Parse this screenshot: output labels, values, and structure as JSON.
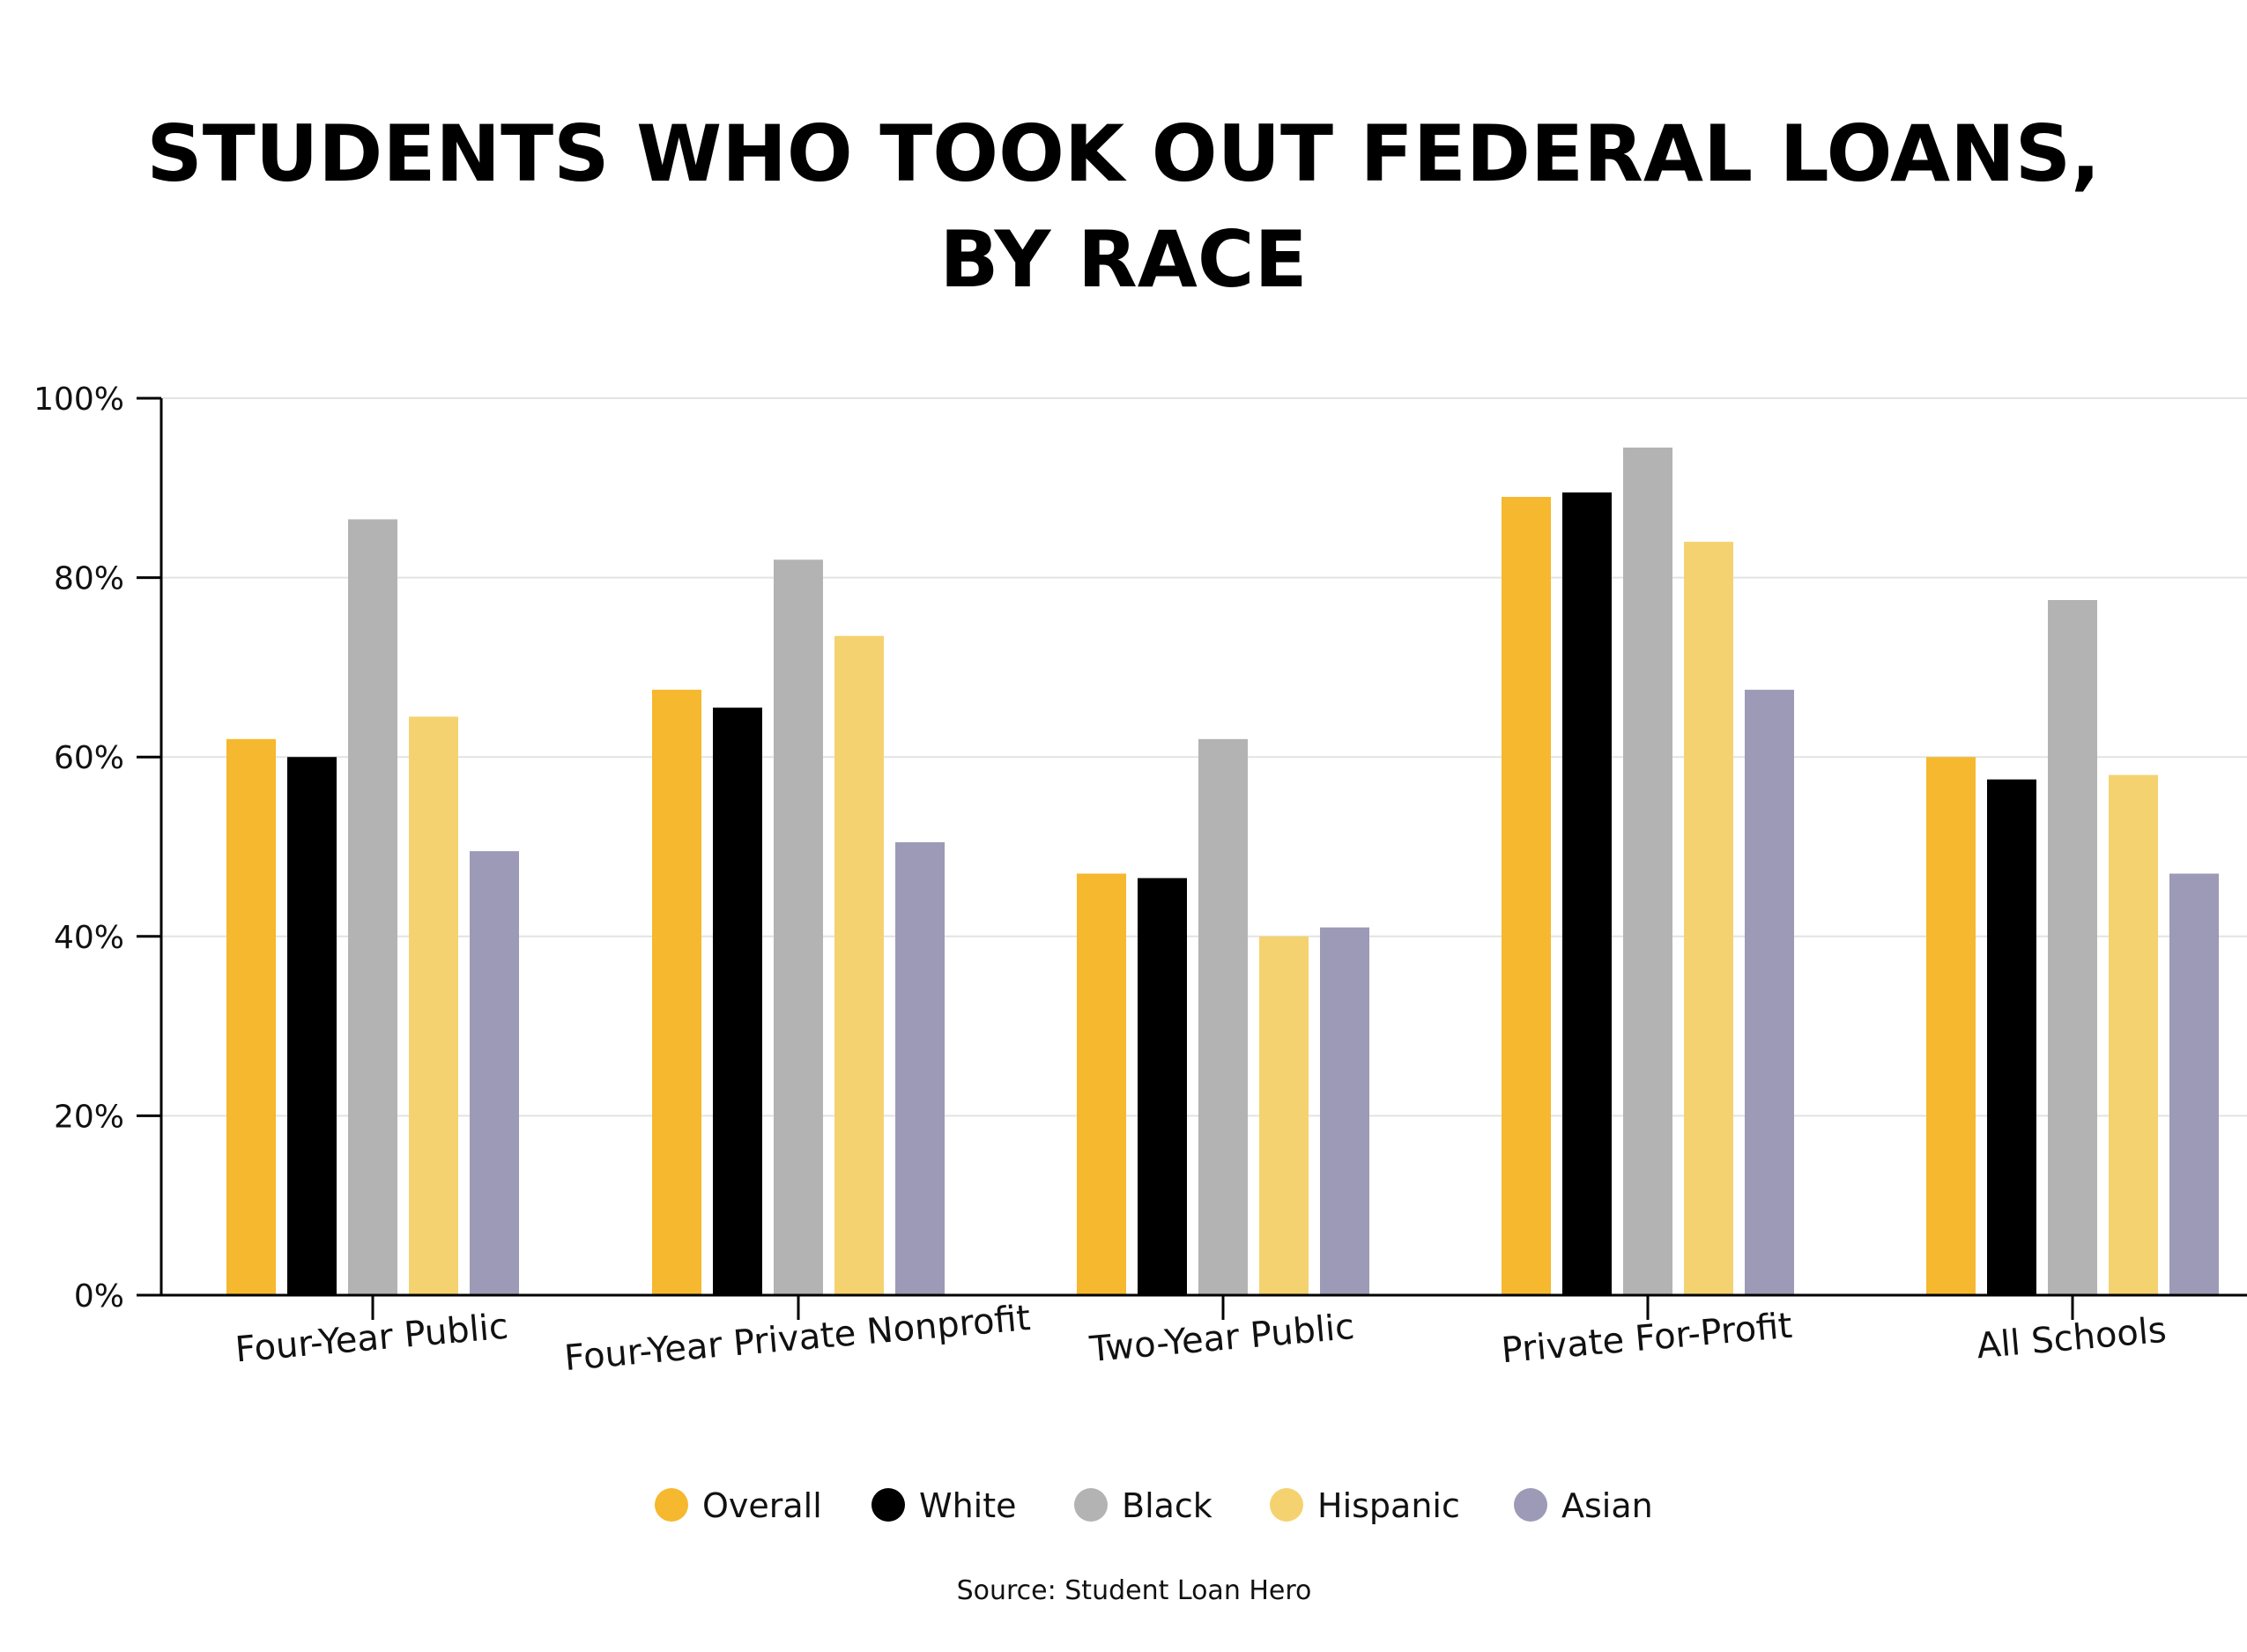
{
  "chart_data": {
    "type": "bar",
    "title_lines": [
      "STUDENTS WHO TOOK OUT FEDERAL LOANS,",
      "BY RACE"
    ],
    "categories": [
      "Four-Year Public",
      "Four-Year Private Nonprofit",
      "Two-Year Public",
      "Private For-Profit",
      "All Schools"
    ],
    "series": [
      {
        "name": "Overall",
        "color": "#F5B82E",
        "values": [
          62,
          67.5,
          47,
          89,
          60
        ]
      },
      {
        "name": "White",
        "color": "#000000",
        "values": [
          60,
          65.5,
          46.5,
          89.5,
          57.5
        ]
      },
      {
        "name": "Black",
        "color": "#B3B3B3",
        "values": [
          86.5,
          82,
          62,
          94.5,
          77.5
        ]
      },
      {
        "name": "Hispanic",
        "color": "#F5D270",
        "values": [
          64.5,
          73.5,
          40,
          84,
          58
        ]
      },
      {
        "name": "Asian",
        "color": "#9D9AB7",
        "values": [
          49.5,
          50.5,
          41,
          67.5,
          47
        ]
      }
    ],
    "ylim": [
      0,
      100
    ],
    "y_ticks": [
      0,
      20,
      40,
      60,
      80,
      100
    ],
    "y_tick_labels": [
      "0%",
      "20%",
      "40%",
      "60%",
      "80%",
      "100%"
    ],
    "grid": true,
    "legend_position": "bottom",
    "source": "Source: Student Loan Hero"
  }
}
